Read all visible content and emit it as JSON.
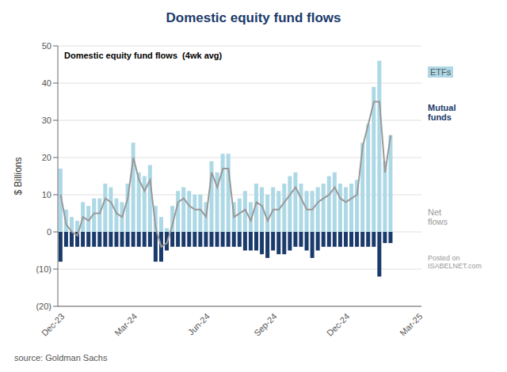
{
  "chart_data": {
    "type": "bar",
    "title": "Domestic equity fund flows",
    "subtitle": "Domestic equity fund flows  (4wk avg)",
    "ylabel": "$ Billions",
    "annotations": [
      "Posted on\nISABELNET.com",
      "source: Goldman Sachs"
    ],
    "categories": [
      "Dec-23",
      null,
      null,
      null,
      null,
      null,
      null,
      null,
      null,
      null,
      null,
      null,
      null,
      "Mar-24",
      null,
      null,
      null,
      null,
      null,
      null,
      null,
      null,
      null,
      null,
      null,
      null,
      "Jun-24",
      null,
      null,
      null,
      null,
      null,
      null,
      null,
      null,
      null,
      null,
      null,
      "Sep-24",
      null,
      null,
      null,
      null,
      null,
      null,
      null,
      null,
      null,
      null,
      null,
      null,
      "Dec-24",
      null,
      null,
      null,
      null,
      null,
      null,
      null,
      null,
      null,
      null,
      null,
      null,
      "Mar-25"
    ],
    "series": [
      {
        "name": "ETFs",
        "type": "bar",
        "color": "#add8e6",
        "values": [
          17,
          6,
          4,
          3,
          8,
          7,
          9,
          9,
          13,
          12,
          9,
          8,
          13,
          24,
          16,
          15,
          18,
          7,
          4,
          1,
          7,
          11,
          12,
          11,
          10,
          10,
          8,
          19,
          16,
          21,
          21,
          8,
          9,
          11,
          8,
          13,
          12,
          10,
          12,
          11,
          13,
          15,
          16,
          13,
          11,
          11,
          12,
          13,
          15,
          16,
          13,
          12,
          13,
          14,
          24,
          29,
          39,
          46,
          19,
          26,
          null,
          null,
          null,
          null,
          null
        ]
      },
      {
        "name": "Mutual\nfunds",
        "type": "bar",
        "color": "#1a3a6b",
        "values": [
          -8,
          -4,
          -4,
          -4,
          -4,
          -4,
          -4,
          -4,
          -4,
          -4,
          -4,
          -4,
          -4,
          -4,
          -4,
          -4,
          -4,
          -8,
          -8,
          -5,
          -4,
          -4,
          -4,
          -4,
          -4,
          -4,
          -4,
          -4,
          -4,
          -4,
          -4,
          -4,
          -4,
          -5,
          -5,
          -5,
          -6,
          -7,
          -5,
          -6,
          -6,
          -5,
          -4,
          -4,
          -5,
          -7,
          -5,
          -4,
          -4,
          -4,
          -4,
          -4,
          -4,
          -4,
          -4,
          -4,
          -4,
          -12,
          -3,
          -3,
          null,
          null,
          null,
          null,
          null
        ]
      },
      {
        "name": "Net\nflows",
        "type": "line",
        "color": "#999999",
        "values": [
          10,
          2,
          0,
          -1,
          4,
          3,
          5,
          5,
          9,
          8,
          5,
          4,
          9,
          20,
          14,
          11,
          14,
          1,
          -4,
          -3,
          2,
          8,
          9,
          7,
          6,
          6,
          4,
          16,
          12,
          17,
          17,
          4,
          5,
          6,
          3,
          8,
          7,
          3,
          6,
          6,
          8,
          10,
          12,
          9,
          6,
          6,
          8,
          9,
          10,
          12,
          9,
          8,
          9,
          10,
          23,
          29,
          35,
          35,
          16,
          26,
          null,
          null,
          null,
          null,
          null
        ]
      }
    ],
    "stacked": true,
    "ylim": [
      -20,
      50
    ],
    "yticks": [
      {
        "value": -20,
        "label": "(20)"
      },
      {
        "value": -10,
        "label": "(10)"
      },
      0,
      10,
      20,
      30,
      40,
      50
    ],
    "grid": true
  }
}
